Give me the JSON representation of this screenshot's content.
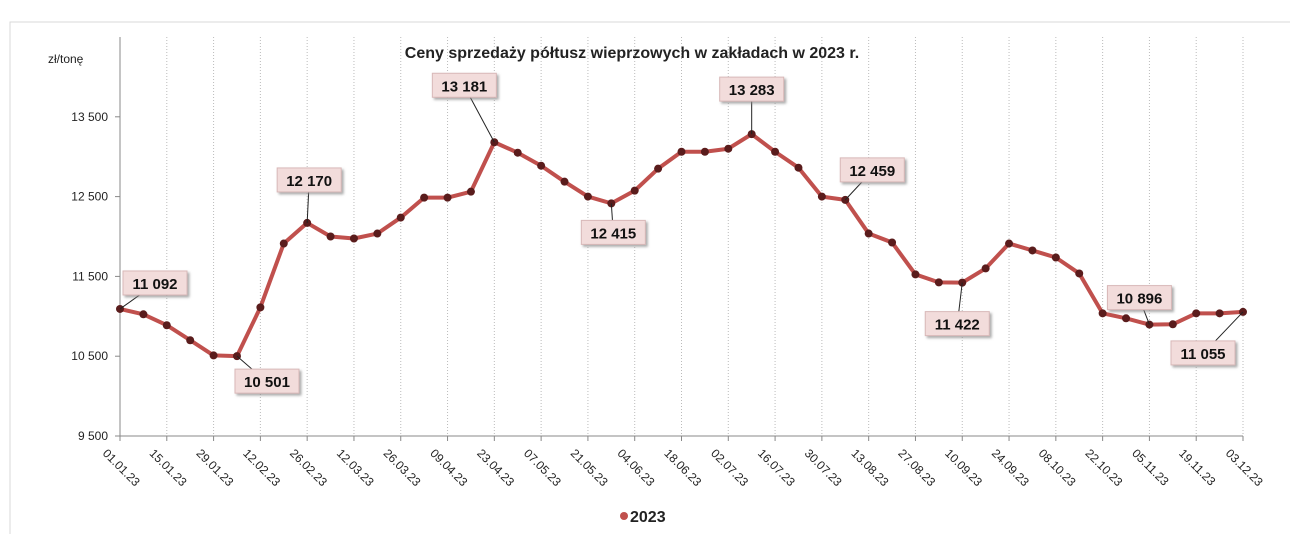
{
  "chart_data": {
    "type": "line",
    "title": "Ceny sprzedaży półtusz wieprzowych w zakładach w 2023 r.",
    "y_label": "zł/tonę",
    "categories": [
      "01.01.23",
      null,
      "15.01.23",
      null,
      "29.01.23",
      null,
      "12.02.23",
      null,
      "26.02.23",
      null,
      "12.03.23",
      null,
      "26.03.23",
      null,
      "09.04.23",
      null,
      "23.04.23",
      null,
      "07.05.23",
      null,
      "21.05.23",
      null,
      "04.06.23",
      null,
      "18.06.23",
      null,
      "02.07.23",
      null,
      "16.07.23",
      null,
      "30.07.23",
      null,
      "13.08.23",
      null,
      "27.08.23",
      null,
      "10.09.23",
      null,
      "24.09.23",
      null,
      "08.10.23",
      null,
      "22.10.23",
      null,
      "05.11.23",
      null,
      "19.11.23",
      null,
      "03.12.23"
    ],
    "series": [
      {
        "name": "2023",
        "color": "#c0504d",
        "marker_color": "#5a1c1c",
        "values": [
          11092,
          11025,
          10888,
          10700,
          10510,
          10501,
          11112,
          11912,
          12170,
          12000,
          11975,
          12037,
          12237,
          12487,
          12487,
          12562,
          13181,
          13050,
          12887,
          12687,
          12500,
          12415,
          12575,
          12850,
          13062,
          13062,
          13100,
          13283,
          13062,
          12862,
          12500,
          12459,
          12037,
          11925,
          11525,
          11425,
          11422,
          11600,
          11912,
          11825,
          11737,
          11537,
          11037,
          10975,
          10896,
          10900,
          11037,
          11037,
          11055
        ],
        "value_labels": [
          "11 092",
          null,
          null,
          null,
          null,
          "10 501",
          null,
          null,
          "12 170",
          null,
          null,
          null,
          null,
          null,
          null,
          null,
          "13 181",
          null,
          null,
          null,
          null,
          "12 415",
          null,
          null,
          null,
          null,
          null,
          "13 283",
          null,
          null,
          null,
          "12 459",
          null,
          null,
          null,
          null,
          "11 422",
          null,
          null,
          null,
          null,
          null,
          null,
          null,
          "10 896",
          null,
          null,
          null,
          "11 055"
        ]
      }
    ],
    "ylim": [
      9500,
      14500
    ],
    "yticks": [
      {
        "value": 9500,
        "label": "9 500"
      },
      {
        "value": 10500,
        "label": "10 500"
      },
      {
        "value": 11500,
        "label": "11 500"
      },
      {
        "value": 12500,
        "label": "12 500"
      },
      {
        "value": 13500,
        "label": "13 500"
      }
    ],
    "grid": true
  }
}
